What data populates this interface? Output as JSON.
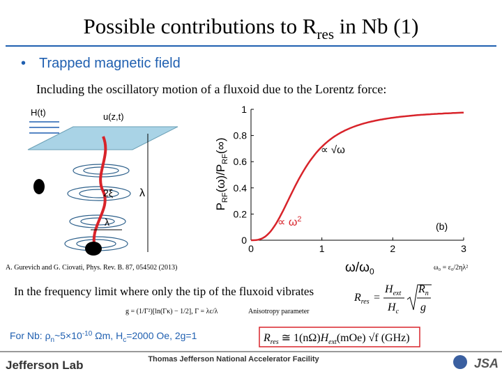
{
  "title": {
    "main": "Possible contributions to R",
    "sub": "res",
    "rest": " in Nb (1)"
  },
  "bullet": "Trapped magnetic field",
  "intro": "Including the oscillatory motion of a fluxoid due to the Lorentz force:",
  "diagram": {
    "labels": [
      "H(t)",
      "u(z,t)",
      "2ξ",
      "λ",
      "λ"
    ]
  },
  "plot": {
    "y_label": [
      "P",
      "RF",
      "(ω)/P",
      "RF",
      "(∞)"
    ],
    "x_label": [
      "ω/ω",
      "0"
    ],
    "xticks": [
      0,
      1,
      2,
      3
    ],
    "yticks": [
      0,
      0.2,
      0.4,
      0.6,
      0.8,
      1
    ],
    "annotations": {
      "sqrt": "∝ √ω",
      "square": "∝ ω",
      "square_exp": "2",
      "panel": "(b)"
    }
  },
  "citation": "A. Gurevich and G. Ciovati, Phys. Rev. B. 87, 054502 (2013)",
  "omega0": "ω₀ = ε₀/2ηλ²",
  "limit_text": "In the frequency limit where only the tip of the fluxoid vibrates",
  "rres_formula": [
    "R",
    "res",
    "=",
    "H",
    "ext",
    "H",
    "c",
    "R",
    "n",
    "g"
  ],
  "g_formula": "g = (1/Γ²)[ln(Γκ) − 1/2],   Γ = λc/λ",
  "anisotropy": "Anisotropy parameter",
  "nb_params": [
    "For Nb: ρ",
    "n",
    "~5×10",
    "-10",
    " Ωm, H",
    "c",
    "=2000 Oe, 2g=1"
  ],
  "boxed_formula": [
    "R",
    "res",
    " ≅ 1(nΩ)",
    "H",
    "ext",
    "(mOe)",
    "√f (GHz)"
  ],
  "footer": {
    "left": "Jefferson Lab",
    "center": "Thomas Jefferson National Accelerator Facility",
    "right": "JSA"
  }
}
